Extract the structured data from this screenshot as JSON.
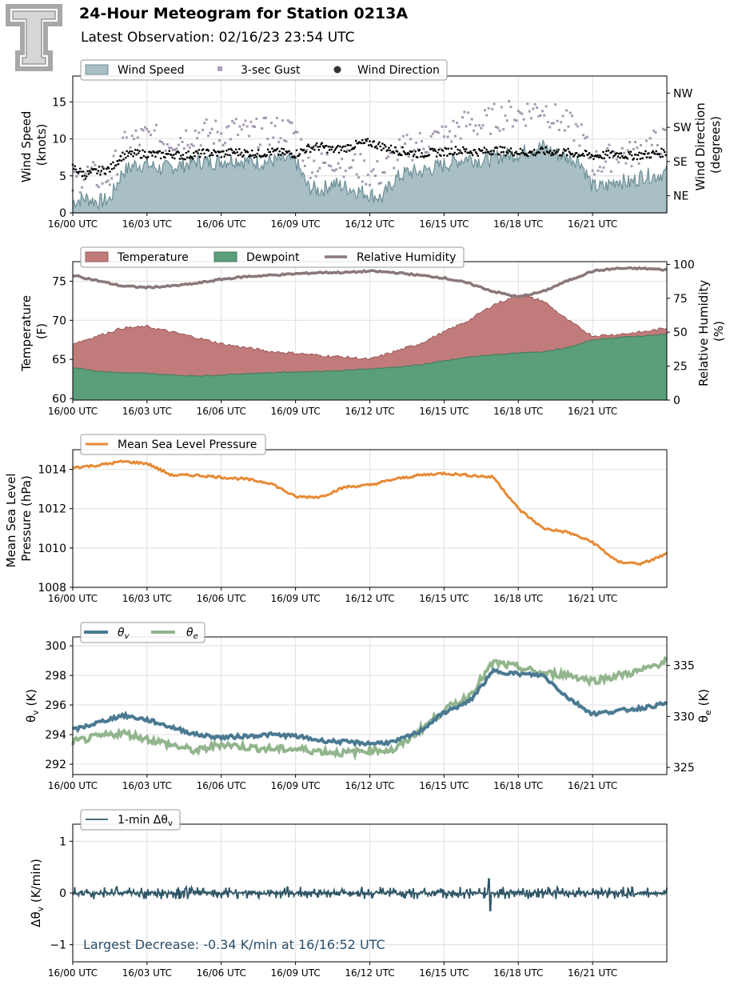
{
  "header": {
    "title": "24-Hour Meteogram for Station 0213A",
    "subtitle": "Latest Observation: 02/16/23 23:54 UTC",
    "logo_icon": "texas-tech-double-t-logo-icon"
  },
  "x_axis": {
    "range_hours": [
      0,
      24
    ],
    "ticks": [
      0,
      3,
      6,
      9,
      12,
      15,
      18,
      21
    ],
    "tick_labels": [
      "16/00 UTC",
      "16/03 UTC",
      "16/06 UTC",
      "16/09 UTC",
      "16/12 UTC",
      "16/15 UTC",
      "16/18 UTC",
      "16/21 UTC"
    ]
  },
  "colors": {
    "wind_fill": "#a7bfc5",
    "wind_line": "#6d8f96",
    "gust": "#8a7a9a",
    "direction": "#000000",
    "temperature": "#c27b7b",
    "dewpoint": "#5a9e7a",
    "rh": "#8b7878",
    "pressure": "#e68a35",
    "theta_v": "#4a7a92",
    "theta_e": "#92b58d",
    "delta": "#2f5666",
    "annotation": "#2b4f6b"
  },
  "chart_data": [
    {
      "type": "area",
      "id": "wind",
      "ylabel_lines": [
        "Wind Speed",
        "(knots)"
      ],
      "ylim": [
        0,
        18.5
      ],
      "yticks": [
        0,
        5,
        10,
        15
      ],
      "y2label_lines": [
        "Wind Direction",
        "(degrees)"
      ],
      "y2lim": [
        0,
        360
      ],
      "y2ticks": [
        45,
        135,
        225,
        315
      ],
      "y2tick_labels": [
        "NE",
        "SE",
        "SW",
        "NW"
      ],
      "legend": [
        "Wind Speed",
        "3-sec Gust",
        "Wind Direction"
      ],
      "x": [
        0,
        0.5,
        1,
        1.5,
        2,
        2.5,
        3,
        3.5,
        4,
        4.5,
        5,
        5.5,
        6,
        6.5,
        7,
        7.5,
        8,
        8.5,
        9,
        9.5,
        10,
        10.5,
        11,
        11.5,
        12,
        12.5,
        13,
        13.5,
        14,
        14.5,
        15,
        15.5,
        16,
        16.5,
        17,
        17.5,
        18,
        18.5,
        19,
        19.5,
        20,
        20.5,
        21,
        21.5,
        22,
        22.5,
        23,
        23.5,
        24
      ],
      "speed": [
        1.5,
        2.0,
        1.5,
        1.8,
        5.5,
        6.5,
        6.5,
        6.0,
        6.2,
        6.5,
        7.0,
        6.8,
        7.0,
        7.2,
        7.0,
        6.8,
        7.0,
        7.2,
        7.0,
        3.5,
        3.0,
        4.0,
        3.5,
        3.0,
        2.5,
        2.0,
        4.5,
        5.5,
        5.5,
        6.0,
        6.5,
        7.0,
        7.5,
        7.0,
        7.5,
        7.8,
        8.0,
        8.5,
        9.0,
        8.0,
        7.5,
        7.0,
        3.5,
        3.5,
        4.5,
        4.0,
        5.0,
        5.0,
        5.5
      ],
      "gust": [
        3.0,
        4.5,
        4.0,
        4.0,
        8.0,
        9.0,
        9.5,
        9.0,
        9.0,
        9.5,
        10.0,
        10.0,
        10.0,
        10.5,
        10.0,
        10.0,
        10.2,
        10.5,
        10.0,
        6.0,
        5.5,
        6.5,
        6.0,
        5.5,
        4.5,
        4.5,
        7.0,
        8.0,
        8.5,
        9.0,
        9.5,
        10.5,
        11.5,
        11.0,
        12.0,
        12.5,
        12.5,
        13.0,
        13.5,
        12.0,
        11.0,
        10.0,
        6.0,
        6.0,
        7.5,
        7.0,
        8.0,
        8.5,
        9.0
      ],
      "direction_deg": [
        120,
        100,
        110,
        115,
        150,
        155,
        155,
        152,
        155,
        150,
        155,
        158,
        155,
        160,
        158,
        155,
        160,
        158,
        155,
        170,
        175,
        165,
        170,
        180,
        185,
        175,
        165,
        160,
        155,
        158,
        160,
        165,
        162,
        160,
        165,
        162,
        160,
        158,
        162,
        160,
        158,
        155,
        150,
        152,
        155,
        150,
        152,
        155,
        160
      ]
    },
    {
      "type": "area",
      "id": "thermo",
      "ylabel_lines": [
        "Temperature",
        "(F)"
      ],
      "ylim": [
        59.8,
        77.5
      ],
      "yticks": [
        60,
        65,
        70,
        75
      ],
      "y2label_lines": [
        "Relative Humidity",
        "(%)"
      ],
      "y2lim": [
        0,
        102
      ],
      "y2ticks": [
        0,
        25,
        50,
        75,
        100
      ],
      "legend": [
        "Temperature",
        "Dewpoint",
        "Relative Humidity"
      ],
      "x": [
        0,
        1,
        2,
        3,
        4,
        5,
        6,
        7,
        8,
        9,
        10,
        11,
        12,
        13,
        14,
        15,
        16,
        17,
        18,
        19,
        20,
        21,
        22,
        23,
        24
      ],
      "temperature": [
        67.0,
        68.0,
        69.0,
        69.2,
        68.5,
        67.8,
        67.0,
        66.5,
        66.0,
        65.8,
        65.5,
        65.3,
        65.0,
        66.0,
        67.0,
        68.5,
        70.0,
        72.0,
        73.2,
        72.5,
        70.0,
        68.0,
        68.2,
        68.5,
        69.0
      ],
      "dewpoint": [
        64.0,
        63.5,
        63.3,
        63.2,
        63.0,
        62.9,
        63.0,
        63.2,
        63.3,
        63.4,
        63.5,
        63.6,
        63.8,
        64.0,
        64.3,
        64.8,
        65.3,
        65.6,
        65.8,
        66.0,
        66.5,
        67.5,
        67.8,
        68.0,
        68.2
      ],
      "rh": [
        92,
        88,
        84,
        83,
        84,
        86,
        89,
        91,
        92,
        93,
        94,
        94,
        95,
        94,
        92,
        90,
        86,
        80,
        76,
        80,
        88,
        95,
        97,
        97,
        96
      ]
    },
    {
      "type": "line",
      "id": "pressure",
      "ylabel_lines": [
        "Mean Sea Level",
        "Pressure (hPa)"
      ],
      "ylim": [
        1008,
        1015
      ],
      "yticks": [
        1008,
        1010,
        1012,
        1014
      ],
      "legend": [
        "Mean Sea Level Pressure"
      ],
      "x": [
        0,
        1,
        2,
        3,
        4,
        5,
        6,
        7,
        8,
        9,
        10,
        11,
        12,
        13,
        14,
        15,
        16,
        17,
        18,
        19,
        20,
        21,
        22,
        23,
        24
      ],
      "values": [
        1014.1,
        1014.2,
        1014.4,
        1014.3,
        1013.7,
        1013.7,
        1013.6,
        1013.5,
        1013.3,
        1012.6,
        1012.6,
        1013.1,
        1013.2,
        1013.5,
        1013.7,
        1013.8,
        1013.7,
        1013.6,
        1012.0,
        1011.0,
        1010.8,
        1010.3,
        1009.3,
        1009.2,
        1009.7
      ]
    },
    {
      "type": "line",
      "id": "theta",
      "ylabel": "θ",
      "ylabel_sub": "v",
      "ylabel_unit": " (K)",
      "ylim": [
        291.3,
        300.6
      ],
      "yticks": [
        292,
        294,
        296,
        298,
        300
      ],
      "y2label": "θ",
      "y2label_sub": "e",
      "y2label_unit": " (K)",
      "y2lim": [
        324.3,
        337.8
      ],
      "y2ticks": [
        325,
        330,
        335
      ],
      "legend_base": "θ",
      "legend_subs": [
        "v",
        "e"
      ],
      "x": [
        0,
        1,
        2,
        3,
        4,
        5,
        6,
        7,
        8,
        9,
        10,
        11,
        12,
        13,
        14,
        15,
        16,
        17,
        18,
        19,
        20,
        21,
        22,
        23,
        24
      ],
      "theta_v": [
        294.3,
        294.8,
        295.3,
        295.0,
        294.5,
        294.0,
        293.8,
        293.9,
        294.0,
        293.9,
        293.6,
        293.5,
        293.4,
        293.5,
        294.2,
        295.5,
        296.2,
        298.3,
        298.1,
        298.0,
        296.5,
        295.4,
        295.6,
        295.8,
        296.1
      ],
      "theta_e": [
        327.5,
        328.0,
        328.4,
        327.8,
        327.2,
        326.6,
        327.3,
        327.0,
        326.8,
        326.8,
        326.6,
        326.4,
        326.7,
        326.7,
        328.6,
        330.6,
        332.0,
        335.3,
        334.8,
        334.2,
        334.1,
        333.5,
        334.0,
        334.5,
        335.5
      ]
    },
    {
      "type": "line",
      "id": "delta",
      "ylabel": "Δθ",
      "ylabel_sub": "v",
      "ylabel_unit": " (K/min)",
      "ylim": [
        -1.33,
        1.33
      ],
      "yticks": [
        -1,
        0,
        1
      ],
      "ytick_labels": [
        "−1",
        "0",
        "1"
      ],
      "legend_base": "1-min Δθ",
      "legend_sub": "v",
      "amplitude": 0.12,
      "largest_decrease": {
        "value": -0.34,
        "time_hours": 16.87
      },
      "annotation": "Largest Decrease: -0.34 K/min at 16/16:52 UTC"
    }
  ]
}
